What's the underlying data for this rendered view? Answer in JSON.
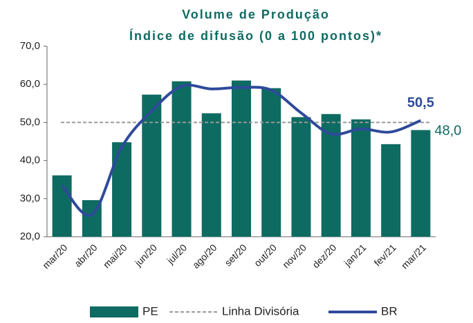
{
  "chart_data": {
    "type": "bar_line",
    "title": "Volume de Produção",
    "subtitle": "Índice de difusão (0 a 100 pontos)*",
    "categories": [
      "mar/20",
      "abr/20",
      "mai/20",
      "jun/20",
      "jul/20",
      "ago/20",
      "set/20",
      "out/20",
      "nov/20",
      "dez/20",
      "jan/21",
      "fev/21",
      "mar/21"
    ],
    "series": [
      {
        "name": "PE",
        "color": "#0e6b62",
        "kind": "bar",
        "values": [
          36.1,
          29.6,
          44.8,
          57.3,
          60.8,
          52.4,
          61.0,
          59.0,
          51.4,
          52.2,
          50.8,
          44.3,
          48.0
        ],
        "value_labels": [
          null,
          null,
          null,
          null,
          null,
          null,
          null,
          null,
          null,
          null,
          null,
          null,
          "48,0"
        ]
      },
      {
        "name": "BR",
        "color": "#2e4a9a",
        "kind": "line",
        "values": [
          33.5,
          25.8,
          43.5,
          53.0,
          59.5,
          58.8,
          59.2,
          58.5,
          52.5,
          47.0,
          48.3,
          47.5,
          50.5
        ],
        "value_labels": [
          null,
          null,
          null,
          null,
          null,
          null,
          null,
          null,
          null,
          null,
          null,
          null,
          "50,5"
        ]
      }
    ],
    "reference_line": {
      "name": "Linha Divisória",
      "value": 50,
      "color": "#999999"
    },
    "ylim": [
      20,
      70
    ],
    "yticks": [
      {
        "value": 20,
        "label": "20,0"
      },
      {
        "value": 30,
        "label": "30,0"
      },
      {
        "value": 40,
        "label": "40,0"
      },
      {
        "value": 50,
        "label": "50,0"
      },
      {
        "value": 60,
        "label": "60,0"
      },
      {
        "value": 70,
        "label": "70,0"
      }
    ],
    "legend": "bottom"
  }
}
